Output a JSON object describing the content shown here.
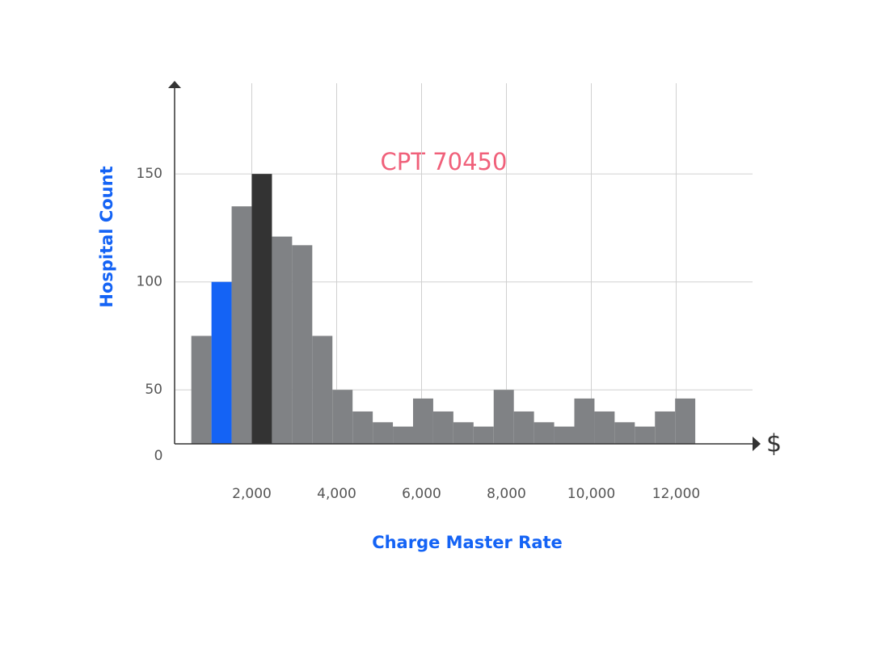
{
  "chart_data": {
    "type": "histogram",
    "title": "CPT 70450",
    "title_color": "#f0607a",
    "x_label": "Charge Master Rate",
    "y_label": "Hospital Count",
    "axis_label_color": "#1463f5",
    "x_unit": "$",
    "origin_label": "0",
    "bins": [
      575,
      1050,
      1525,
      2000,
      2475,
      2950,
      3425,
      3900,
      4375,
      4850,
      5325,
      5800,
      6275,
      6750,
      7225,
      7700,
      8175,
      8650,
      9125,
      9600,
      10075,
      10550,
      11025,
      11500,
      11975,
      12450
    ],
    "values": [
      75,
      100,
      135,
      150,
      121,
      117,
      75,
      50,
      40,
      35,
      33,
      46,
      40,
      35,
      33,
      50,
      40,
      35,
      33,
      46,
      40,
      35,
      33,
      40,
      46
    ],
    "colors": [
      "#808285",
      "#1463f5",
      "#808285",
      "#333333",
      "#808285",
      "#808285",
      "#808285",
      "#808285",
      "#808285",
      "#808285",
      "#808285",
      "#808285",
      "#808285",
      "#808285",
      "#808285",
      "#808285",
      "#808285",
      "#808285",
      "#808285",
      "#808285",
      "#808285",
      "#808285",
      "#808285",
      "#808285",
      "#808285"
    ],
    "xlim": [
      200,
      13800
    ],
    "ylim": [
      25,
      192
    ],
    "xticks": [
      {
        "value": 2000,
        "label": "2,000"
      },
      {
        "value": 4000,
        "label": "4,000"
      },
      {
        "value": 6000,
        "label": "6,000"
      },
      {
        "value": 8000,
        "label": "8,000"
      },
      {
        "value": 10000,
        "label": "10,000"
      },
      {
        "value": 12000,
        "label": "12,000"
      }
    ],
    "yticks": [
      50,
      100,
      150
    ],
    "grid": true
  }
}
